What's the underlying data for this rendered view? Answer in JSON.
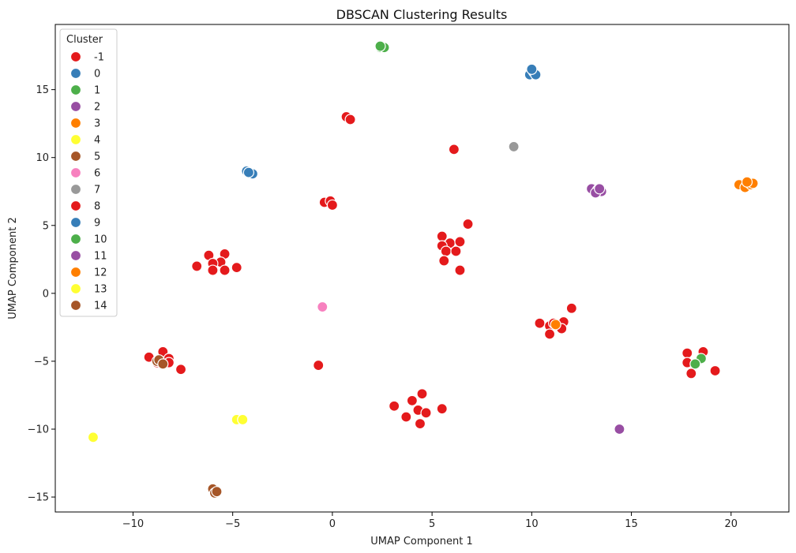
{
  "chart_data": {
    "type": "scatter",
    "title": "DBSCAN Clustering Results",
    "xlabel": "UMAP Component 1",
    "ylabel": "UMAP Component 2",
    "xlim": [
      -13.9,
      22.9
    ],
    "ylim": [
      -16.1,
      19.8
    ],
    "xticks": [
      -10,
      -5,
      0,
      5,
      10,
      15,
      20
    ],
    "yticks": [
      -15,
      -10,
      -5,
      0,
      5,
      10,
      15
    ],
    "grid": false,
    "legend": {
      "title": "Cluster",
      "placement": "top-left"
    },
    "series": [
      {
        "name": "-1",
        "color": "#e41a1c",
        "points": [
          [
            0.7,
            13.0
          ],
          [
            0.9,
            12.8
          ],
          [
            6.1,
            10.6
          ],
          [
            -0.4,
            6.7
          ],
          [
            -0.1,
            6.8
          ],
          [
            0.0,
            6.5
          ],
          [
            5.5,
            4.2
          ],
          [
            5.9,
            3.7
          ],
          [
            6.4,
            3.8
          ],
          [
            6.8,
            5.1
          ],
          [
            5.5,
            3.5
          ],
          [
            5.7,
            3.1
          ],
          [
            6.2,
            3.1
          ],
          [
            5.6,
            2.4
          ],
          [
            6.4,
            1.7
          ],
          [
            -6.2,
            2.8
          ],
          [
            -5.4,
            2.9
          ],
          [
            -5.6,
            2.3
          ],
          [
            -6.0,
            2.2
          ],
          [
            -6.8,
            2.0
          ],
          [
            -6.0,
            1.7
          ],
          [
            -5.4,
            1.7
          ],
          [
            -4.8,
            1.9
          ],
          [
            10.4,
            -2.2
          ],
          [
            10.9,
            -2.4
          ],
          [
            11.1,
            -2.2
          ],
          [
            11.6,
            -2.1
          ],
          [
            11.5,
            -2.6
          ],
          [
            12.0,
            -1.1
          ],
          [
            10.9,
            -3.0
          ],
          [
            -9.2,
            -4.7
          ],
          [
            -8.5,
            -4.3
          ],
          [
            -8.2,
            -4.8
          ],
          [
            -8.8,
            -5.1
          ],
          [
            -8.2,
            -5.1
          ],
          [
            -7.6,
            -5.6
          ],
          [
            -0.7,
            -5.3
          ],
          [
            17.8,
            -4.4
          ],
          [
            18.6,
            -4.3
          ],
          [
            17.8,
            -5.1
          ],
          [
            18.0,
            -5.9
          ],
          [
            19.2,
            -5.7
          ],
          [
            4.0,
            -7.9
          ],
          [
            4.5,
            -7.4
          ],
          [
            3.1,
            -8.3
          ],
          [
            4.3,
            -8.6
          ],
          [
            4.7,
            -8.8
          ],
          [
            5.5,
            -8.5
          ],
          [
            3.7,
            -9.1
          ],
          [
            4.4,
            -9.6
          ]
        ]
      },
      {
        "name": "0",
        "color": "#377eb8",
        "points": [
          [
            9.9,
            16.1
          ],
          [
            10.1,
            16.3
          ],
          [
            10.2,
            16.1
          ],
          [
            10.0,
            16.5
          ]
        ]
      },
      {
        "name": "1",
        "color": "#4daf4a",
        "points": [
          [
            2.4,
            18.1
          ],
          [
            2.6,
            18.1
          ],
          [
            2.4,
            18.2
          ]
        ]
      },
      {
        "name": "2",
        "color": "#984ea3",
        "points": [
          [
            14.4,
            -10.0
          ]
        ]
      },
      {
        "name": "3",
        "color": "#ff7f00",
        "points": [
          [
            11.2,
            -2.3
          ]
        ]
      },
      {
        "name": "4",
        "color": "#ffff33",
        "points": [
          [
            -12.0,
            -10.6
          ]
        ]
      },
      {
        "name": "5",
        "color": "#a65628",
        "points": [
          [
            -6.0,
            -14.4
          ],
          [
            -5.9,
            -14.7
          ],
          [
            -5.8,
            -14.6
          ]
        ]
      },
      {
        "name": "6",
        "color": "#f781bf",
        "points": [
          [
            -0.5,
            -1.0
          ]
        ]
      },
      {
        "name": "7",
        "color": "#999999",
        "points": [
          [
            9.1,
            10.8
          ]
        ]
      },
      {
        "name": "8",
        "color": "#e41a1c",
        "points": []
      },
      {
        "name": "9",
        "color": "#377eb8",
        "points": [
          [
            -4.3,
            9.0
          ],
          [
            -4.0,
            8.8
          ],
          [
            -4.2,
            8.9
          ]
        ]
      },
      {
        "name": "10",
        "color": "#4daf4a",
        "points": [
          [
            18.5,
            -4.8
          ],
          [
            18.2,
            -5.2
          ]
        ]
      },
      {
        "name": "11",
        "color": "#984ea3",
        "points": [
          [
            13.0,
            7.7
          ],
          [
            13.3,
            7.6
          ],
          [
            13.5,
            7.5
          ],
          [
            13.2,
            7.4
          ],
          [
            13.4,
            7.7
          ]
        ]
      },
      {
        "name": "12",
        "color": "#ff7f00",
        "points": [
          [
            20.4,
            8.0
          ],
          [
            20.7,
            7.8
          ],
          [
            21.0,
            8.0
          ],
          [
            21.1,
            8.1
          ],
          [
            20.8,
            8.2
          ]
        ]
      },
      {
        "name": "13",
        "color": "#ffff33",
        "points": [
          [
            -4.8,
            -9.3
          ],
          [
            -4.5,
            -9.3
          ]
        ]
      },
      {
        "name": "14",
        "color": "#a65628",
        "points": [
          [
            -8.8,
            -5.0
          ],
          [
            -8.7,
            -4.9
          ],
          [
            -8.5,
            -5.2
          ]
        ]
      }
    ]
  }
}
